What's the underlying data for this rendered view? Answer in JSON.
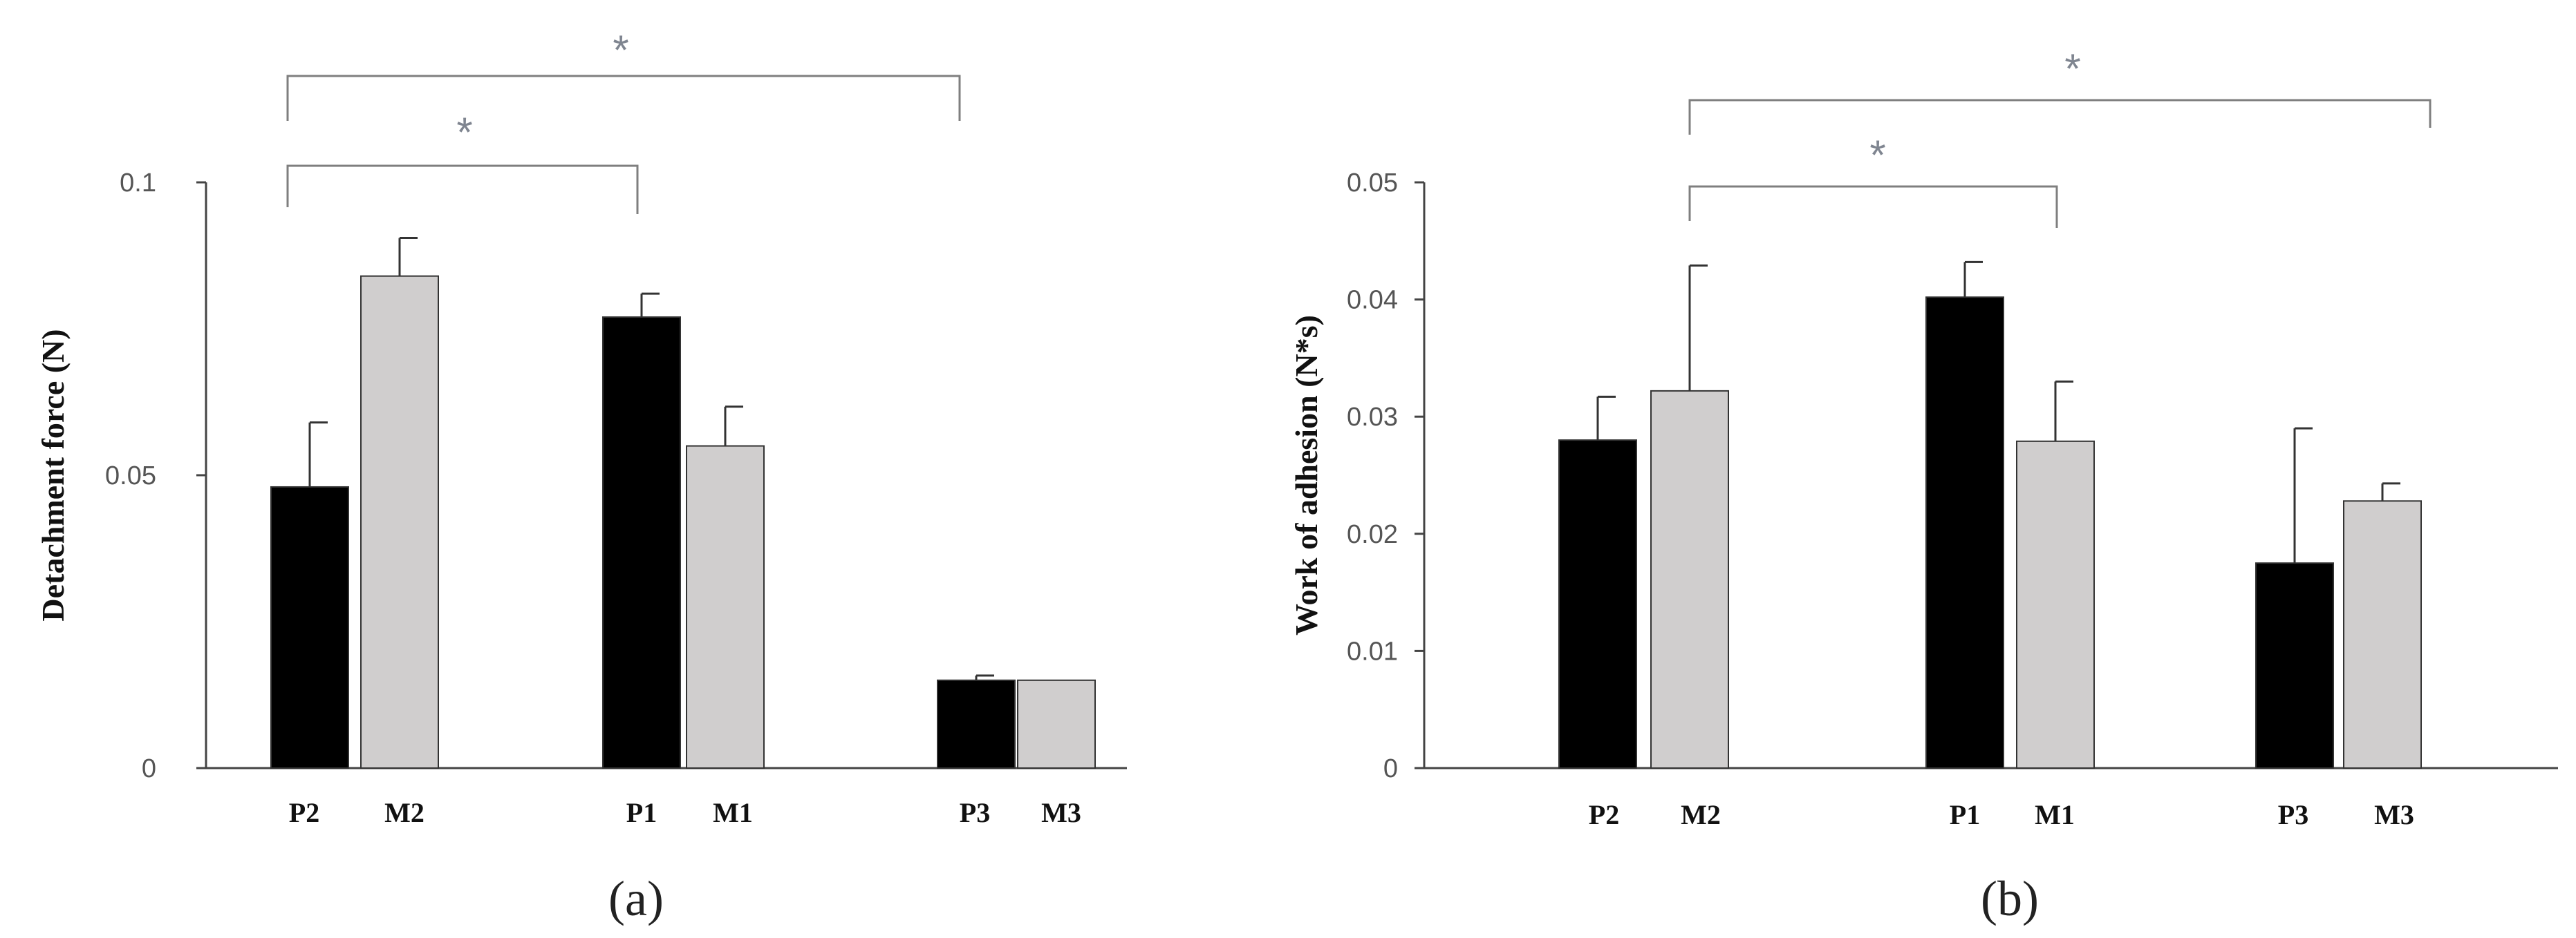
{
  "chart_data": [
    {
      "type": "bar",
      "panel_label": "(a)",
      "ylabel": "Detachment force (N)",
      "ylim": [
        0,
        0.1
      ],
      "yticks": [
        {
          "value": 0,
          "label": "0"
        },
        {
          "value": 0.05,
          "label": "0.05"
        },
        {
          "value": 0.1,
          "label": "0.1"
        }
      ],
      "bars": [
        {
          "label": "P2",
          "value": 0.048,
          "error": 0.011,
          "color": "#000000"
        },
        {
          "label": "M2",
          "value": 0.084,
          "error": 0.0065,
          "color": "#d0cece"
        },
        {
          "label": "P1",
          "value": 0.077,
          "error": 0.004,
          "color": "#000000"
        },
        {
          "label": "M1",
          "value": 0.055,
          "error": 0.0067,
          "color": "#d0cece"
        },
        {
          "label": "P3",
          "value": 0.015,
          "error": 0.0008,
          "color": "#000000"
        },
        {
          "label": "M3",
          "value": 0.015,
          "error": 0.0,
          "color": "#d0cece"
        }
      ],
      "significance": [
        {
          "from": "P2",
          "to": "P1",
          "label": "*"
        },
        {
          "from": "P2",
          "to": "P3",
          "label": "*"
        }
      ],
      "grid": false
    },
    {
      "type": "bar",
      "panel_label": "(b)",
      "ylabel": "Work of adhesion (N*s)",
      "ylim": [
        0,
        0.05
      ],
      "yticks": [
        {
          "value": 0,
          "label": "0"
        },
        {
          "value": 0.01,
          "label": "0.01"
        },
        {
          "value": 0.02,
          "label": "0.02"
        },
        {
          "value": 0.03,
          "label": "0.03"
        },
        {
          "value": 0.04,
          "label": "0.04"
        },
        {
          "value": 0.05,
          "label": "0.05"
        }
      ],
      "bars": [
        {
          "label": "P2",
          "value": 0.028,
          "error": 0.0037,
          "color": "#000000"
        },
        {
          "label": "M2",
          "value": 0.0322,
          "error": 0.0107,
          "color": "#d0cece"
        },
        {
          "label": "P1",
          "value": 0.0402,
          "error": 0.003,
          "color": "#000000"
        },
        {
          "label": "M1",
          "value": 0.0279,
          "error": 0.0051,
          "color": "#d0cece"
        },
        {
          "label": "P3",
          "value": 0.0175,
          "error": 0.0115,
          "color": "#000000"
        },
        {
          "label": "M3",
          "value": 0.0228,
          "error": 0.0015,
          "color": "#d0cece"
        }
      ],
      "significance": [
        {
          "from": "M2",
          "to": "M1",
          "label": "*"
        },
        {
          "from": "M2",
          "to": "M3",
          "label": "*"
        }
      ],
      "grid": false
    }
  ]
}
